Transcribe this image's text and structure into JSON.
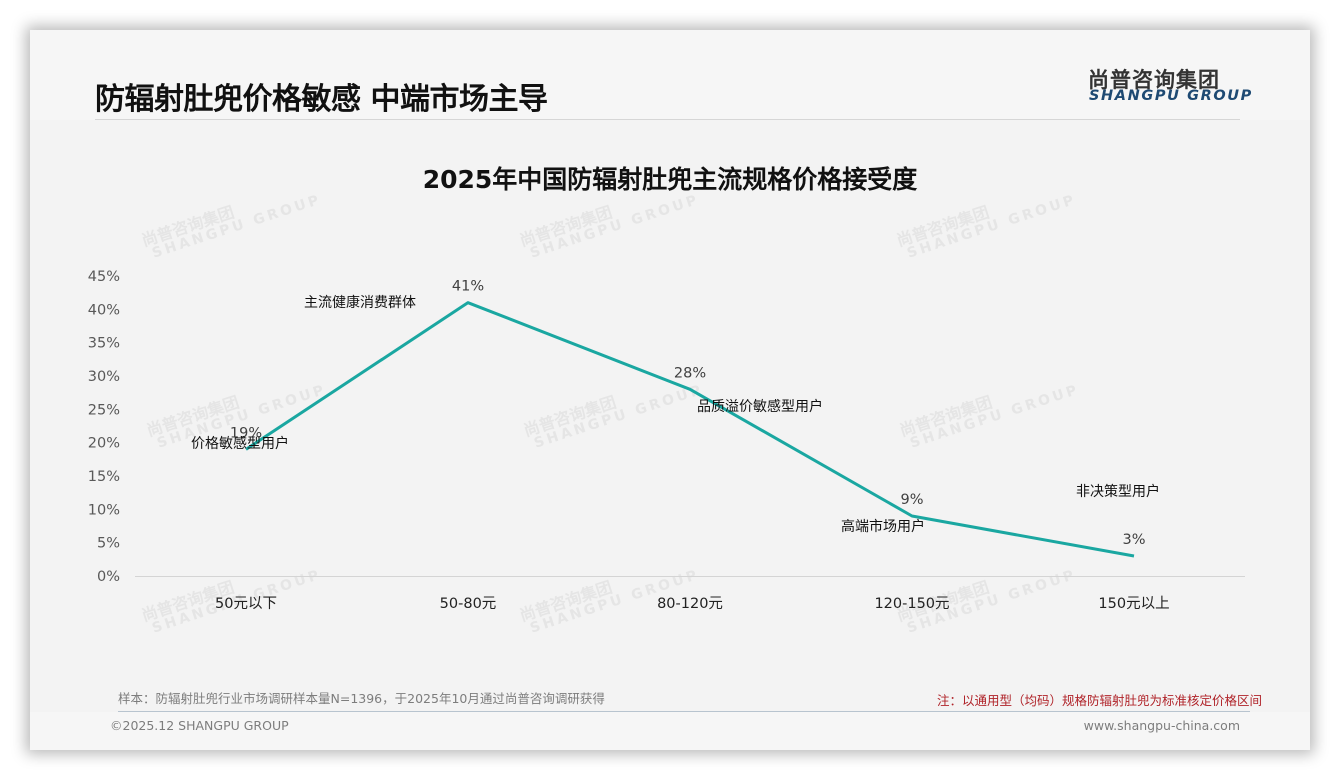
{
  "header": {
    "title": "防辐射肚兜价格敏感 中端市场主导",
    "logo_cn": "尚普咨询集团",
    "logo_en": "SHANGPU GROUP"
  },
  "watermark": {
    "cn": "尚普咨询集团",
    "en": "SHANGPU GROUP"
  },
  "colors": {
    "line": "#1aa7a1",
    "note": "#b0242a",
    "logo_en": "#1e4a73",
    "background": "#f3f3f3"
  },
  "chart_data": {
    "type": "line",
    "title": "2025年中国防辐射肚兜主流规格价格接受度",
    "xlabel": "",
    "ylabel": "",
    "categories": [
      "50元以下",
      "50-80元",
      "80-120元",
      "120-150元",
      "150元以上"
    ],
    "series": [
      {
        "name": "价格接受度",
        "values": [
          19,
          41,
          28,
          9,
          3
        ],
        "data_labels": [
          "19%",
          "41%",
          "28%",
          "9%",
          "3%"
        ]
      }
    ],
    "annotations": [
      "价格敏感型用户",
      "主流健康消费群体",
      "品质溢价敏感型用户",
      "高端市场用户",
      "非决策型用户"
    ],
    "ylim": [
      0,
      45
    ],
    "yticks": [
      "0%",
      "5%",
      "10%",
      "15%",
      "20%",
      "25%",
      "30%",
      "35%",
      "40%",
      "45%"
    ],
    "grid": false,
    "legend": "none"
  },
  "footer": {
    "sample_note": "样本：防辐射肚兜行业市场调研样本量N=1396，于2025年10月通过尚普咨询调研获得",
    "remark": "注：以通用型（均码）规格防辐射肚兜为标准核定价格区间",
    "copyright": "©2025.12 SHANGPU GROUP",
    "website": "www.shangpu-china.com"
  }
}
